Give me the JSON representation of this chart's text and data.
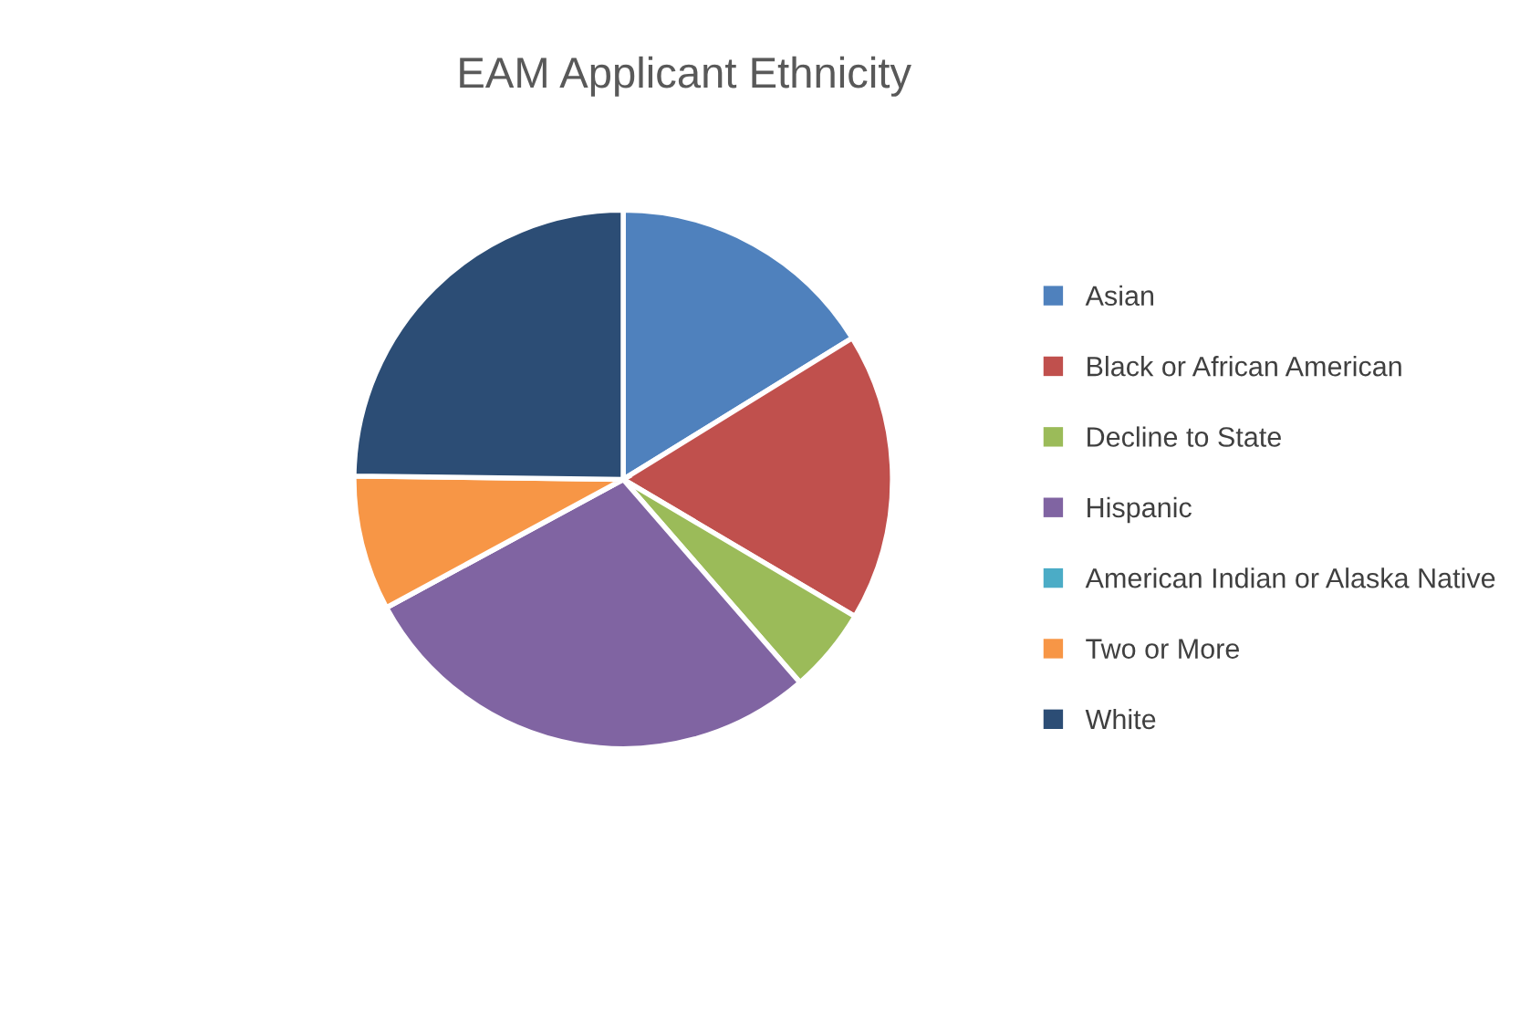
{
  "chart_data": {
    "type": "pie",
    "title": "EAM Applicant Ethnicity",
    "categories": [
      "Asian",
      "Black or African American",
      "Decline to State",
      "Hispanic",
      "American Indian or Alaska Native",
      "Two or More",
      "White"
    ],
    "values": [
      16.2,
      17.3,
      5.1,
      28.5,
      0,
      8.1,
      24.8
    ],
    "colors": [
      "#4f81bd",
      "#c0504d",
      "#9bbb59",
      "#8064a2",
      "#4bacc6",
      "#f79646",
      "#2c4d75"
    ],
    "legend": "right"
  }
}
